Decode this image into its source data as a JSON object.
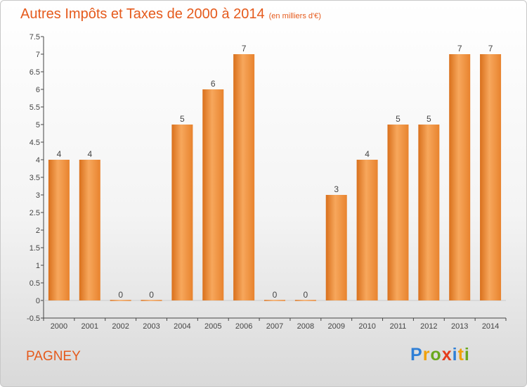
{
  "header": {
    "title": "Autres Impôts et Taxes de 2000 à 2014",
    "unit": "(en milliers d'€)"
  },
  "footer": {
    "place": "PAGNEY",
    "brand": {
      "letters": [
        "P",
        "r",
        "o",
        "x",
        "i",
        "t",
        "i"
      ],
      "colors": [
        "#2f7fd6",
        "#f0a10a",
        "#6aa81e",
        "#e53c1c",
        "#2f7fd6",
        "#f0a10a",
        "#6aa81e"
      ]
    }
  },
  "colors": {
    "title": "#e55a1c",
    "bar_light": "#f7a75c",
    "bar_dark": "#d9701c",
    "axis": "#444444",
    "grid": "#cccccc"
  },
  "chart_data": {
    "type": "bar",
    "title": "Autres Impôts et Taxes de 2000 à 2014",
    "ylabel": "(en milliers d'€)",
    "categories": [
      "2000",
      "2001",
      "2002",
      "2003",
      "2004",
      "2005",
      "2006",
      "2007",
      "2008",
      "2009",
      "2010",
      "2011",
      "2012",
      "2013",
      "2014"
    ],
    "values": [
      4,
      4,
      0,
      0,
      5,
      6,
      7,
      0,
      0,
      3,
      4,
      5,
      5,
      7,
      7
    ],
    "data_labels": [
      "4",
      "4",
      "0",
      "0",
      "5",
      "6",
      "7",
      "0",
      "0",
      "3",
      "4",
      "5",
      "5",
      "7",
      "7"
    ],
    "yticks": [
      "-0.5",
      "0",
      "0.5",
      "1",
      "1.5",
      "2",
      "2.5",
      "3",
      "3.5",
      "4",
      "4.5",
      "5",
      "5.5",
      "6",
      "6.5",
      "7",
      "7.5"
    ],
    "ylim": [
      -0.5,
      7.5
    ],
    "grid": false,
    "legend": "none"
  }
}
